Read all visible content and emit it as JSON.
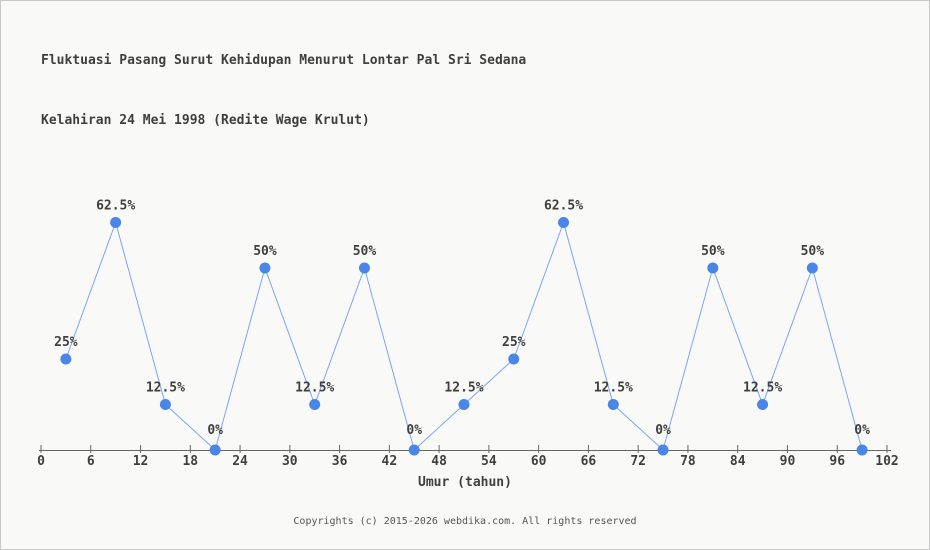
{
  "page": {
    "title_line1": "Fluktuasi Pasang Surut Kehidupan Menurut Lontar Pal Sri Sedana",
    "title_line2": "Kelahiran 24 Mei 1998 (Redite Wage Krulut)",
    "footer": "Copyrights (c) 2015-2026 webdika.com. All rights reserved"
  },
  "chart_data": {
    "type": "line",
    "title": "Fluktuasi Pasang Surut Kehidupan Menurut Lontar Pal Sri Sedana Kelahiran 24 Mei 1998 (Redite Wage Krulut)",
    "xlabel": "Umur (tahun)",
    "ylabel": "",
    "x": [
      3,
      9,
      15,
      21,
      27,
      33,
      39,
      45,
      51,
      57,
      63,
      69,
      75,
      81,
      87,
      93,
      99
    ],
    "values": [
      25,
      62.5,
      12.5,
      0,
      50,
      12.5,
      50,
      0,
      12.5,
      25,
      62.5,
      12.5,
      0,
      50,
      12.5,
      50,
      0
    ],
    "point_labels": [
      "25%",
      "62.5%",
      "12.5%",
      "0%",
      "50%",
      "12.5%",
      "50%",
      "0%",
      "12.5%",
      "25%",
      "62.5%",
      "12.5%",
      "0%",
      "50%",
      "12.5%",
      "50%",
      "0%"
    ],
    "x_ticks": [
      0,
      6,
      12,
      18,
      24,
      30,
      36,
      42,
      48,
      54,
      60,
      66,
      72,
      78,
      84,
      90,
      96,
      102
    ],
    "xlim": [
      0,
      102
    ],
    "ylim": [
      0,
      100
    ],
    "grid": false,
    "legend": null,
    "colors": {
      "point": "#4a85e8",
      "line": "#7aa6f0",
      "axis": "#666666",
      "text": "#3f3f3f",
      "background": "#f9f9f7",
      "border": "#c8c8c8",
      "footer_text": "#555555"
    }
  }
}
